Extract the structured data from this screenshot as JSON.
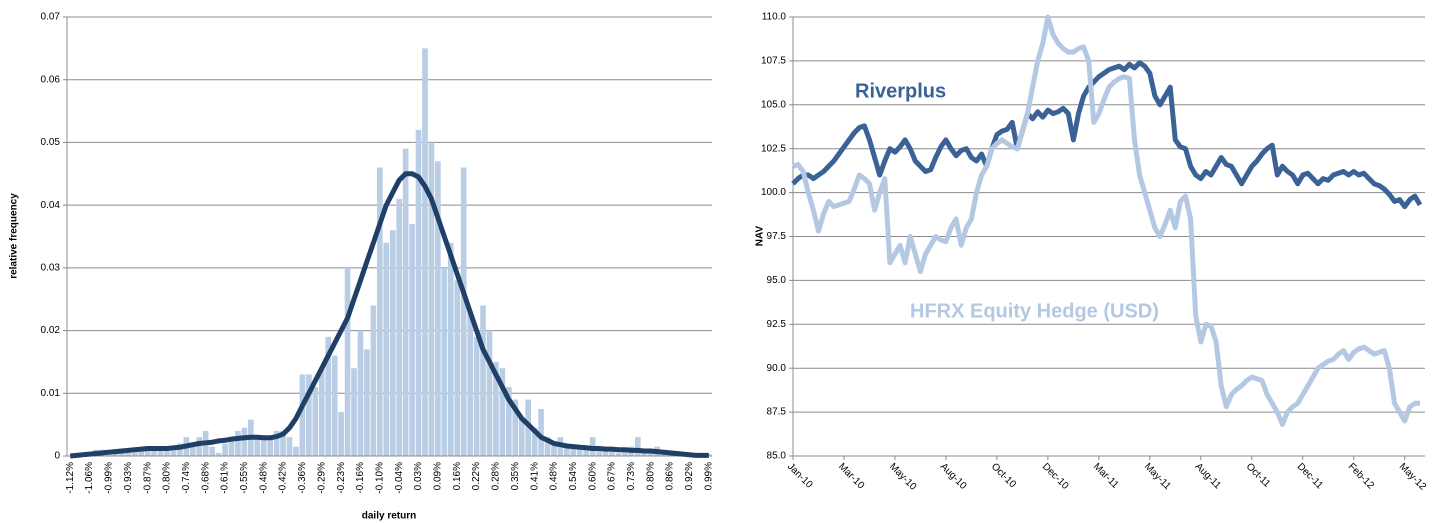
{
  "chart_data": [
    {
      "type": "bar",
      "y_label": "relative frequency",
      "x_label": "daily return",
      "categories": [
        "-1.12%",
        null,
        null,
        "-1.06%",
        null,
        null,
        "-0.99%",
        null,
        null,
        "-0.93%",
        null,
        null,
        "-0.87%",
        null,
        null,
        "-0.80%",
        null,
        null,
        "-0.74%",
        null,
        null,
        "-0.68%",
        null,
        null,
        "-0.61%",
        null,
        null,
        "-0.55%",
        null,
        null,
        "-0.48%",
        null,
        null,
        "-0.42%",
        null,
        null,
        "-0.36%",
        null,
        null,
        "-0.29%",
        null,
        null,
        "-0.23%",
        null,
        null,
        "-0.16%",
        null,
        null,
        "-0.10%",
        null,
        null,
        "-0.04%",
        null,
        null,
        "0.03%",
        null,
        null,
        "0.09%",
        null,
        null,
        "0.16%",
        null,
        null,
        "0.22%",
        null,
        null,
        "0.28%",
        null,
        null,
        "0.35%",
        null,
        null,
        "0.41%",
        null,
        null,
        "0.48%",
        null,
        null,
        "0.54%",
        null,
        null,
        "0.60%",
        null,
        null,
        "0.67%",
        null,
        null,
        "0.73%",
        null,
        null,
        "0.80%",
        null,
        null,
        "0.86%",
        null,
        null,
        "0.92%",
        null,
        null,
        "0.99%"
      ],
      "values": [
        0,
        0,
        0,
        0.0005,
        0.001,
        0.001,
        0.0005,
        0.001,
        0.001,
        0.0005,
        0.001,
        0.001,
        0.001,
        0.0015,
        0.001,
        0.001,
        0.0015,
        0.002,
        0.003,
        0.0015,
        0.003,
        0.004,
        0.0015,
        0.0005,
        0.002,
        0.003,
        0.004,
        0.0045,
        0.0058,
        0.003,
        0.003,
        0.003,
        0.004,
        0.004,
        0.003,
        0.0015,
        0.013,
        0.013,
        0.011,
        0.014,
        0.019,
        0.016,
        0.007,
        0.03,
        0.014,
        0.02,
        0.017,
        0.024,
        0.046,
        0.034,
        0.036,
        0.041,
        0.049,
        0.037,
        0.052,
        0.065,
        0.05,
        0.047,
        0.03,
        0.034,
        0.028,
        0.046,
        0.023,
        0.019,
        0.024,
        0.02,
        0.015,
        0.014,
        0.011,
        0.009,
        0.006,
        0.009,
        0.0045,
        0.0075,
        0.003,
        0.002,
        0.003,
        0.002,
        0.0015,
        0.001,
        0.001,
        0.003,
        0.001,
        0.001,
        0.001,
        0.0005,
        0.001,
        0.0015,
        0.003,
        0.001,
        0.001,
        0.0015,
        0.001,
        0.0005,
        0.0005,
        0.0005,
        0.0005,
        0.0005,
        0.0003,
        0.0003
      ],
      "color": "#b9cde5",
      "line": {
        "color": "#203f66",
        "values": [
          0,
          0.0001,
          0.0002,
          0.0003,
          0.0004,
          0.0005,
          0.0006,
          0.0007,
          0.0008,
          0.0009,
          0.001,
          0.0011,
          0.0012,
          0.0012,
          0.0012,
          0.0012,
          0.0013,
          0.0014,
          0.0016,
          0.0018,
          0.002,
          0.0021,
          0.0022,
          0.0024,
          0.0025,
          0.0027,
          0.0028,
          0.0029,
          0.003,
          0.003,
          0.0029,
          0.0029,
          0.0031,
          0.0035,
          0.0045,
          0.006,
          0.008,
          0.01,
          0.012,
          0.014,
          0.016,
          0.018,
          0.02,
          0.022,
          0.025,
          0.028,
          0.031,
          0.034,
          0.037,
          0.04,
          0.042,
          0.044,
          0.045,
          0.045,
          0.0445,
          0.043,
          0.041,
          0.038,
          0.035,
          0.032,
          0.029,
          0.026,
          0.023,
          0.02,
          0.017,
          0.015,
          0.013,
          0.011,
          0.009,
          0.0075,
          0.006,
          0.005,
          0.004,
          0.003,
          0.0025,
          0.002,
          0.0018,
          0.0016,
          0.0015,
          0.0014,
          0.0013,
          0.0012,
          0.0012,
          0.0011,
          0.0011,
          0.001,
          0.001,
          0.0009,
          0.0009,
          0.0008,
          0.0008,
          0.0007,
          0.0006,
          0.0005,
          0.0004,
          0.0003,
          0.0002,
          0.0001,
          0.0001,
          0.0001
        ]
      },
      "ylim": [
        0,
        0.07
      ],
      "yticks": [
        0,
        0.01,
        0.02,
        0.03,
        0.04,
        0.05,
        0.06,
        0.07
      ],
      "grid": true
    },
    {
      "type": "line",
      "y_label": "NAV",
      "categories": [
        "Jan-10",
        null,
        null,
        null,
        null,
        null,
        null,
        null,
        null,
        null,
        "Mar-10",
        null,
        null,
        null,
        null,
        null,
        null,
        null,
        null,
        null,
        "May-10",
        null,
        null,
        null,
        null,
        null,
        null,
        null,
        null,
        null,
        "Aug-10",
        null,
        null,
        null,
        null,
        null,
        null,
        null,
        null,
        null,
        "Oct-10",
        null,
        null,
        null,
        null,
        null,
        null,
        null,
        null,
        null,
        "Dec-10",
        null,
        null,
        null,
        null,
        null,
        null,
        null,
        null,
        null,
        "Mar-11",
        null,
        null,
        null,
        null,
        null,
        null,
        null,
        null,
        null,
        "May-11",
        null,
        null,
        null,
        null,
        null,
        null,
        null,
        null,
        null,
        "Aug-11",
        null,
        null,
        null,
        null,
        null,
        null,
        null,
        null,
        null,
        "Oct-11",
        null,
        null,
        null,
        null,
        null,
        null,
        null,
        null,
        null,
        "Dec-11",
        null,
        null,
        null,
        null,
        null,
        null,
        null,
        null,
        null,
        "Feb-12",
        null,
        null,
        null,
        null,
        null,
        null,
        null,
        null,
        null,
        "May-12",
        null,
        null,
        null
      ],
      "series": [
        {
          "name": "Riverplus",
          "color": "#3a6296",
          "values": [
            100.5,
            100.8,
            101,
            101,
            100.8,
            101,
            101.2,
            101.5,
            101.8,
            102.2,
            102.6,
            103,
            103.4,
            103.7,
            103.8,
            103,
            102,
            101,
            101.8,
            102.5,
            102.3,
            102.6,
            103,
            102.5,
            101.8,
            101.5,
            101.2,
            101.3,
            102,
            102.6,
            103,
            102.5,
            102.1,
            102.4,
            102.5,
            102,
            101.8,
            102.2,
            101.5,
            102.5,
            103.3,
            103.5,
            103.6,
            104,
            102.5,
            103.5,
            104.5,
            104.2,
            104.6,
            104.3,
            104.7,
            104.5,
            104.6,
            104.8,
            104.5,
            103,
            104.5,
            105.5,
            106,
            106.3,
            106.6,
            106.8,
            107,
            107.1,
            107.2,
            107,
            107.3,
            107.1,
            107.4,
            107.2,
            106.8,
            105.5,
            105,
            105.5,
            106,
            103,
            102.6,
            102.5,
            101.5,
            101,
            100.8,
            101.2,
            101,
            101.5,
            102,
            101.6,
            101.5,
            101,
            100.5,
            101,
            101.5,
            101.8,
            102.2,
            102.5,
            102.7,
            101,
            101.5,
            101.2,
            101,
            100.5,
            101,
            101.1,
            100.8,
            100.5,
            100.8,
            100.7,
            101,
            101.1,
            101.2,
            101,
            101.2,
            101,
            101.1,
            100.8,
            100.5,
            100.4,
            100.2,
            99.9,
            99.5,
            99.6,
            99.2,
            99.6,
            99.8,
            99.3
          ]
        },
        {
          "name": "HFRX Equity Hedge (USD)",
          "color": "#b4c8e4",
          "values": [
            101.5,
            101.6,
            101.2,
            100,
            99,
            97.8,
            98.8,
            99.5,
            99.2,
            99.3,
            99.4,
            99.5,
            100.2,
            101,
            100.8,
            100.5,
            99,
            100,
            100.8,
            96,
            96.5,
            97,
            96,
            97.5,
            96.5,
            95.5,
            96.5,
            97,
            97.5,
            97.3,
            97.2,
            98,
            98.5,
            97,
            98,
            98.5,
            100,
            101,
            101.5,
            102.5,
            102.8,
            103,
            102.8,
            102.6,
            102.5,
            103.5,
            104.5,
            106,
            107.5,
            108.5,
            110,
            109,
            108.5,
            108.2,
            108,
            108,
            108.2,
            108.3,
            107.5,
            104,
            104.5,
            105.3,
            106,
            106.3,
            106.5,
            106.6,
            106.5,
            103,
            101,
            100,
            99,
            98,
            97.5,
            98.2,
            99,
            98,
            99.5,
            99.8,
            98.5,
            93,
            91.5,
            92.5,
            92.4,
            91.5,
            89,
            87.8,
            88.5,
            88.8,
            89,
            89.3,
            89.5,
            89.4,
            89.3,
            88.5,
            88,
            87.5,
            86.8,
            87.5,
            87.8,
            88,
            88.5,
            89,
            89.5,
            90,
            90.2,
            90.4,
            90.5,
            90.8,
            91,
            90.5,
            90.9,
            91.1,
            91.2,
            91,
            90.8,
            90.9,
            91,
            90,
            88,
            87.5,
            87,
            87.8,
            88,
            88
          ]
        }
      ],
      "ylim": [
        85,
        110
      ],
      "yticks": [
        {
          "value": 85,
          "label": "85.0"
        },
        87.5,
        {
          "value": 90,
          "label": "90.0"
        },
        92.5,
        {
          "value": 95,
          "label": "95.0"
        },
        97.5,
        {
          "value": 100,
          "label": "100.0"
        },
        102.5,
        {
          "value": 105,
          "label": "105.0"
        },
        107.5,
        {
          "value": 110,
          "label": "110.0"
        }
      ],
      "grid": true
    }
  ]
}
